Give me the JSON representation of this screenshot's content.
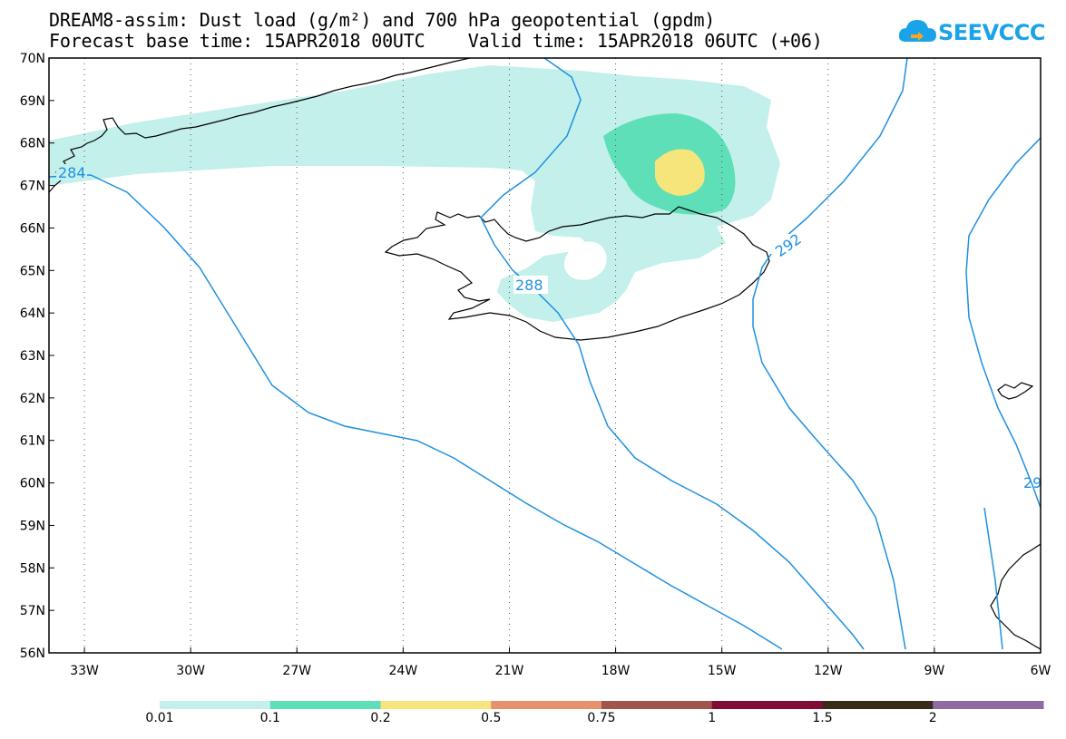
{
  "title": {
    "line1": "DREAM8-assim: Dust load (g/m²) and 700 hPa geopotential (gpdm)",
    "line2": "Forecast base time: 15APR2018 00UTC    Valid time: 15APR2018 06UTC (+06)"
  },
  "logo": {
    "text": "SEEVCCC",
    "color": "#1aa3e8"
  },
  "axes": {
    "lat_labels": [
      "70N",
      "69N",
      "68N",
      "67N",
      "66N",
      "65N",
      "64N",
      "63N",
      "62N",
      "61N",
      "60N",
      "59N",
      "58N",
      "57N",
      "56N"
    ],
    "lon_labels": [
      "33W",
      "30W",
      "27W",
      "24W",
      "21W",
      "18W",
      "15W",
      "12W",
      "9W",
      "6W"
    ],
    "lat_range": [
      56,
      70
    ],
    "lon_range": [
      -34,
      -6
    ],
    "grid": "dotted"
  },
  "contours": {
    "variable": "700 hPa geopotential",
    "color": "#1e90e0",
    "labels": [
      {
        "text": "284",
        "lon": -33.5,
        "lat": 67.3
      },
      {
        "text": "288",
        "lon": -20.5,
        "lat": 64.6
      },
      {
        "text": "292",
        "lon": -13.0,
        "lat": 65.3
      },
      {
        "text": "29",
        "lon": -6.2,
        "lat": 60.0
      }
    ]
  },
  "colorbar": {
    "levels": [
      "0.01",
      "0.1",
      "0.2",
      "0.5",
      "0.75",
      "1",
      "1.5",
      "2"
    ],
    "colors": [
      "#c3f0ea",
      "#5fdfb8",
      "#f5e57a",
      "#e6906c",
      "#a0544c",
      "#820c36",
      "#3a2a18",
      "#8f6aa3"
    ]
  }
}
